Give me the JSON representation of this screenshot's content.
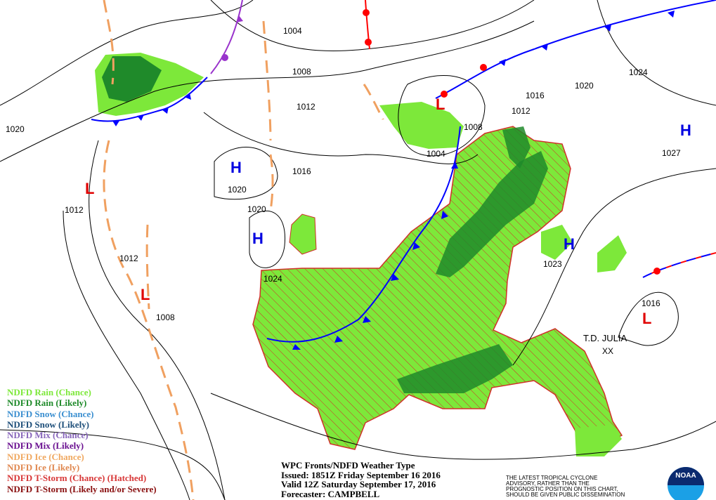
{
  "pressure_labels": [
    "1004",
    "1008",
    "1012",
    "1016",
    "1020",
    "1020",
    "1024",
    "1020",
    "1012",
    "1012",
    "1008",
    "1004",
    "1008",
    "1012",
    "1016",
    "1020",
    "1024",
    "1027",
    "1023",
    "1016"
  ],
  "high_low_centers": [
    "H",
    "H",
    "H",
    "H",
    "L",
    "L",
    "L",
    "L"
  ],
  "colors": {
    "high": "#0000e0",
    "low": "#e00000",
    "rain_chance": "#7de83a",
    "rain_likely": "#1f8a2a",
    "tstorm_hatch": "#d0302a",
    "cold_front": "#0000ff",
    "warm_front": "#ff0000",
    "occluded": "#9933cc",
    "trough": "#f0a060"
  },
  "storm": {
    "name": "T.D. JULIA",
    "symbol": "XX"
  },
  "legend": [
    {
      "label": "NDFD Rain (Chance)",
      "color": "#7de83a"
    },
    {
      "label": "NDFD Rain (Likely)",
      "color": "#1f8a2a"
    },
    {
      "label": "NDFD Snow (Chance)",
      "color": "#3b8fd0"
    },
    {
      "label": "NDFD Snow (Likely)",
      "color": "#1e4f7a"
    },
    {
      "label": "NDFD Mix (Chance)",
      "color": "#8866bb"
    },
    {
      "label": "NDFD Mix (Likely)",
      "color": "#6a1090"
    },
    {
      "label": "NDFD Ice (Chance)",
      "color": "#f0a860"
    },
    {
      "label": "NDFD Ice (Likely)",
      "color": "#e08850"
    },
    {
      "label": "NDFD T-Storm (Chance) (Hatched)",
      "color": "#d83838"
    },
    {
      "label": "NDFD T-Storm (Likely and/or Severe)",
      "color": "#8a1010"
    }
  ],
  "info": {
    "title": "WPC Fronts/NDFD Weather Type",
    "issued": "Issued: 1851Z Friday September 16 2016",
    "valid": "Valid 12Z Saturday September 17, 2016",
    "forecaster": "Forecaster: CAMPBELL"
  },
  "disclaimer": [
    "THE LATEST TROPICAL CYCLONE",
    "ADVISORY, RATHER THAN THE",
    "PROGNOSTIC POSITION ON THIS CHART,",
    "SHOULD BE GIVEN PUBLIC DISSEMINATION"
  ],
  "logo": "NOAA"
}
